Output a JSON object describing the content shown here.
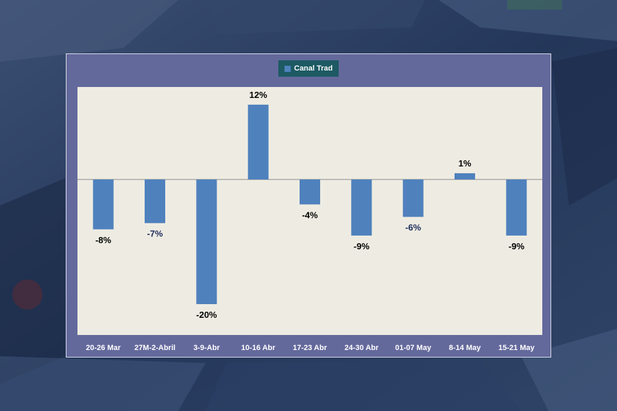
{
  "colors": {
    "bar": "#4f81bd",
    "plot_background": "#eeece2",
    "frame": "#64699c",
    "legend_background": "#1d5a63",
    "label_default": "#000000",
    "label_alt": "#1f2d5c"
  },
  "chart_data": {
    "type": "bar",
    "categories": [
      "20-26 Mar",
      "27M-2-Abril",
      "3-9-Abr",
      "10-16 Abr",
      "17-23 Abr",
      "24-30 Abr",
      "01-07 May",
      "8-14 May",
      "15-21 May"
    ],
    "series": [
      {
        "name": "Canal Trad",
        "values": [
          -8,
          -7,
          -20,
          12,
          -4,
          -9,
          -6,
          1,
          -9
        ],
        "data_labels": [
          "-8%",
          "-7%",
          "-20%",
          "12%",
          "-4%",
          "-9%",
          "-6%",
          "1%",
          "-9%"
        ],
        "label_colors": [
          "#000000",
          "#1f2d5c",
          "#000000",
          "#000000",
          "#000000",
          "#000000",
          "#1f2d5c",
          "#000000",
          "#000000"
        ]
      }
    ],
    "ylim": [
      -25,
      15
    ],
    "title": "",
    "xlabel": "",
    "ylabel": "",
    "grid": false,
    "legend_position": "top-center"
  }
}
